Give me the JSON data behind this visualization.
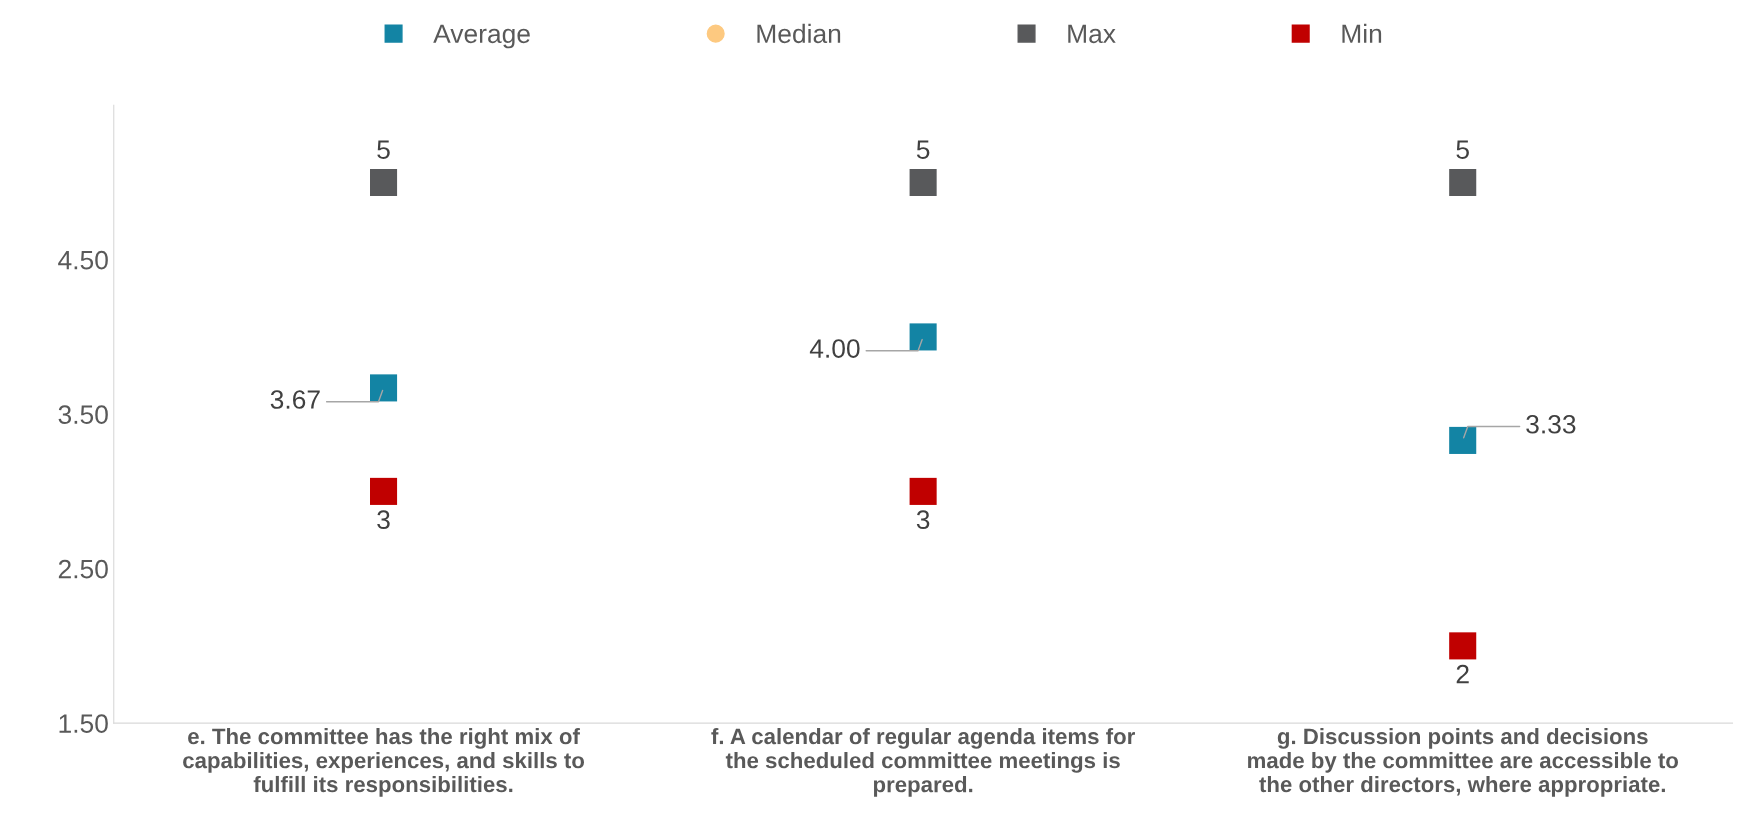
{
  "chart_data": {
    "type": "scatter",
    "categories": [
      "e. The committee has the right mix of\ncapabilities, experiences, and skills to\nfulfill its responsibilities.",
      "f. A calendar of regular agenda items for\nthe scheduled committee meetings is\nprepared.",
      "g. Discussion points and decisions\nmade by the committee are accessible to\nthe other directors, where appropriate."
    ],
    "series": [
      {
        "name": "Average",
        "color": "#1384a4",
        "marker": "square",
        "values": [
          3.67,
          4.0,
          3.33
        ],
        "value_labels": [
          "3.67",
          "4.00",
          "3.33"
        ]
      },
      {
        "name": "Median",
        "color": "#fdc980",
        "marker": "circle",
        "values": [
          null,
          null,
          null
        ]
      },
      {
        "name": "Max",
        "color": "#58595b",
        "marker": "square",
        "values": [
          5,
          5,
          5
        ],
        "value_labels": [
          "5",
          "5",
          "5"
        ]
      },
      {
        "name": "Min",
        "color": "#c00000",
        "marker": "square",
        "values": [
          3,
          3,
          2
        ],
        "value_labels": [
          "3",
          "3",
          "2"
        ]
      }
    ],
    "ylim": [
      1.5,
      5.5
    ],
    "yticks": [
      {
        "value": 1.5,
        "label": "1.50"
      },
      {
        "value": 2.5,
        "label": "2.50"
      },
      {
        "value": 3.5,
        "label": "3.50"
      },
      {
        "value": 4.5,
        "label": "4.50"
      }
    ],
    "grid": false,
    "legend": "top"
  }
}
